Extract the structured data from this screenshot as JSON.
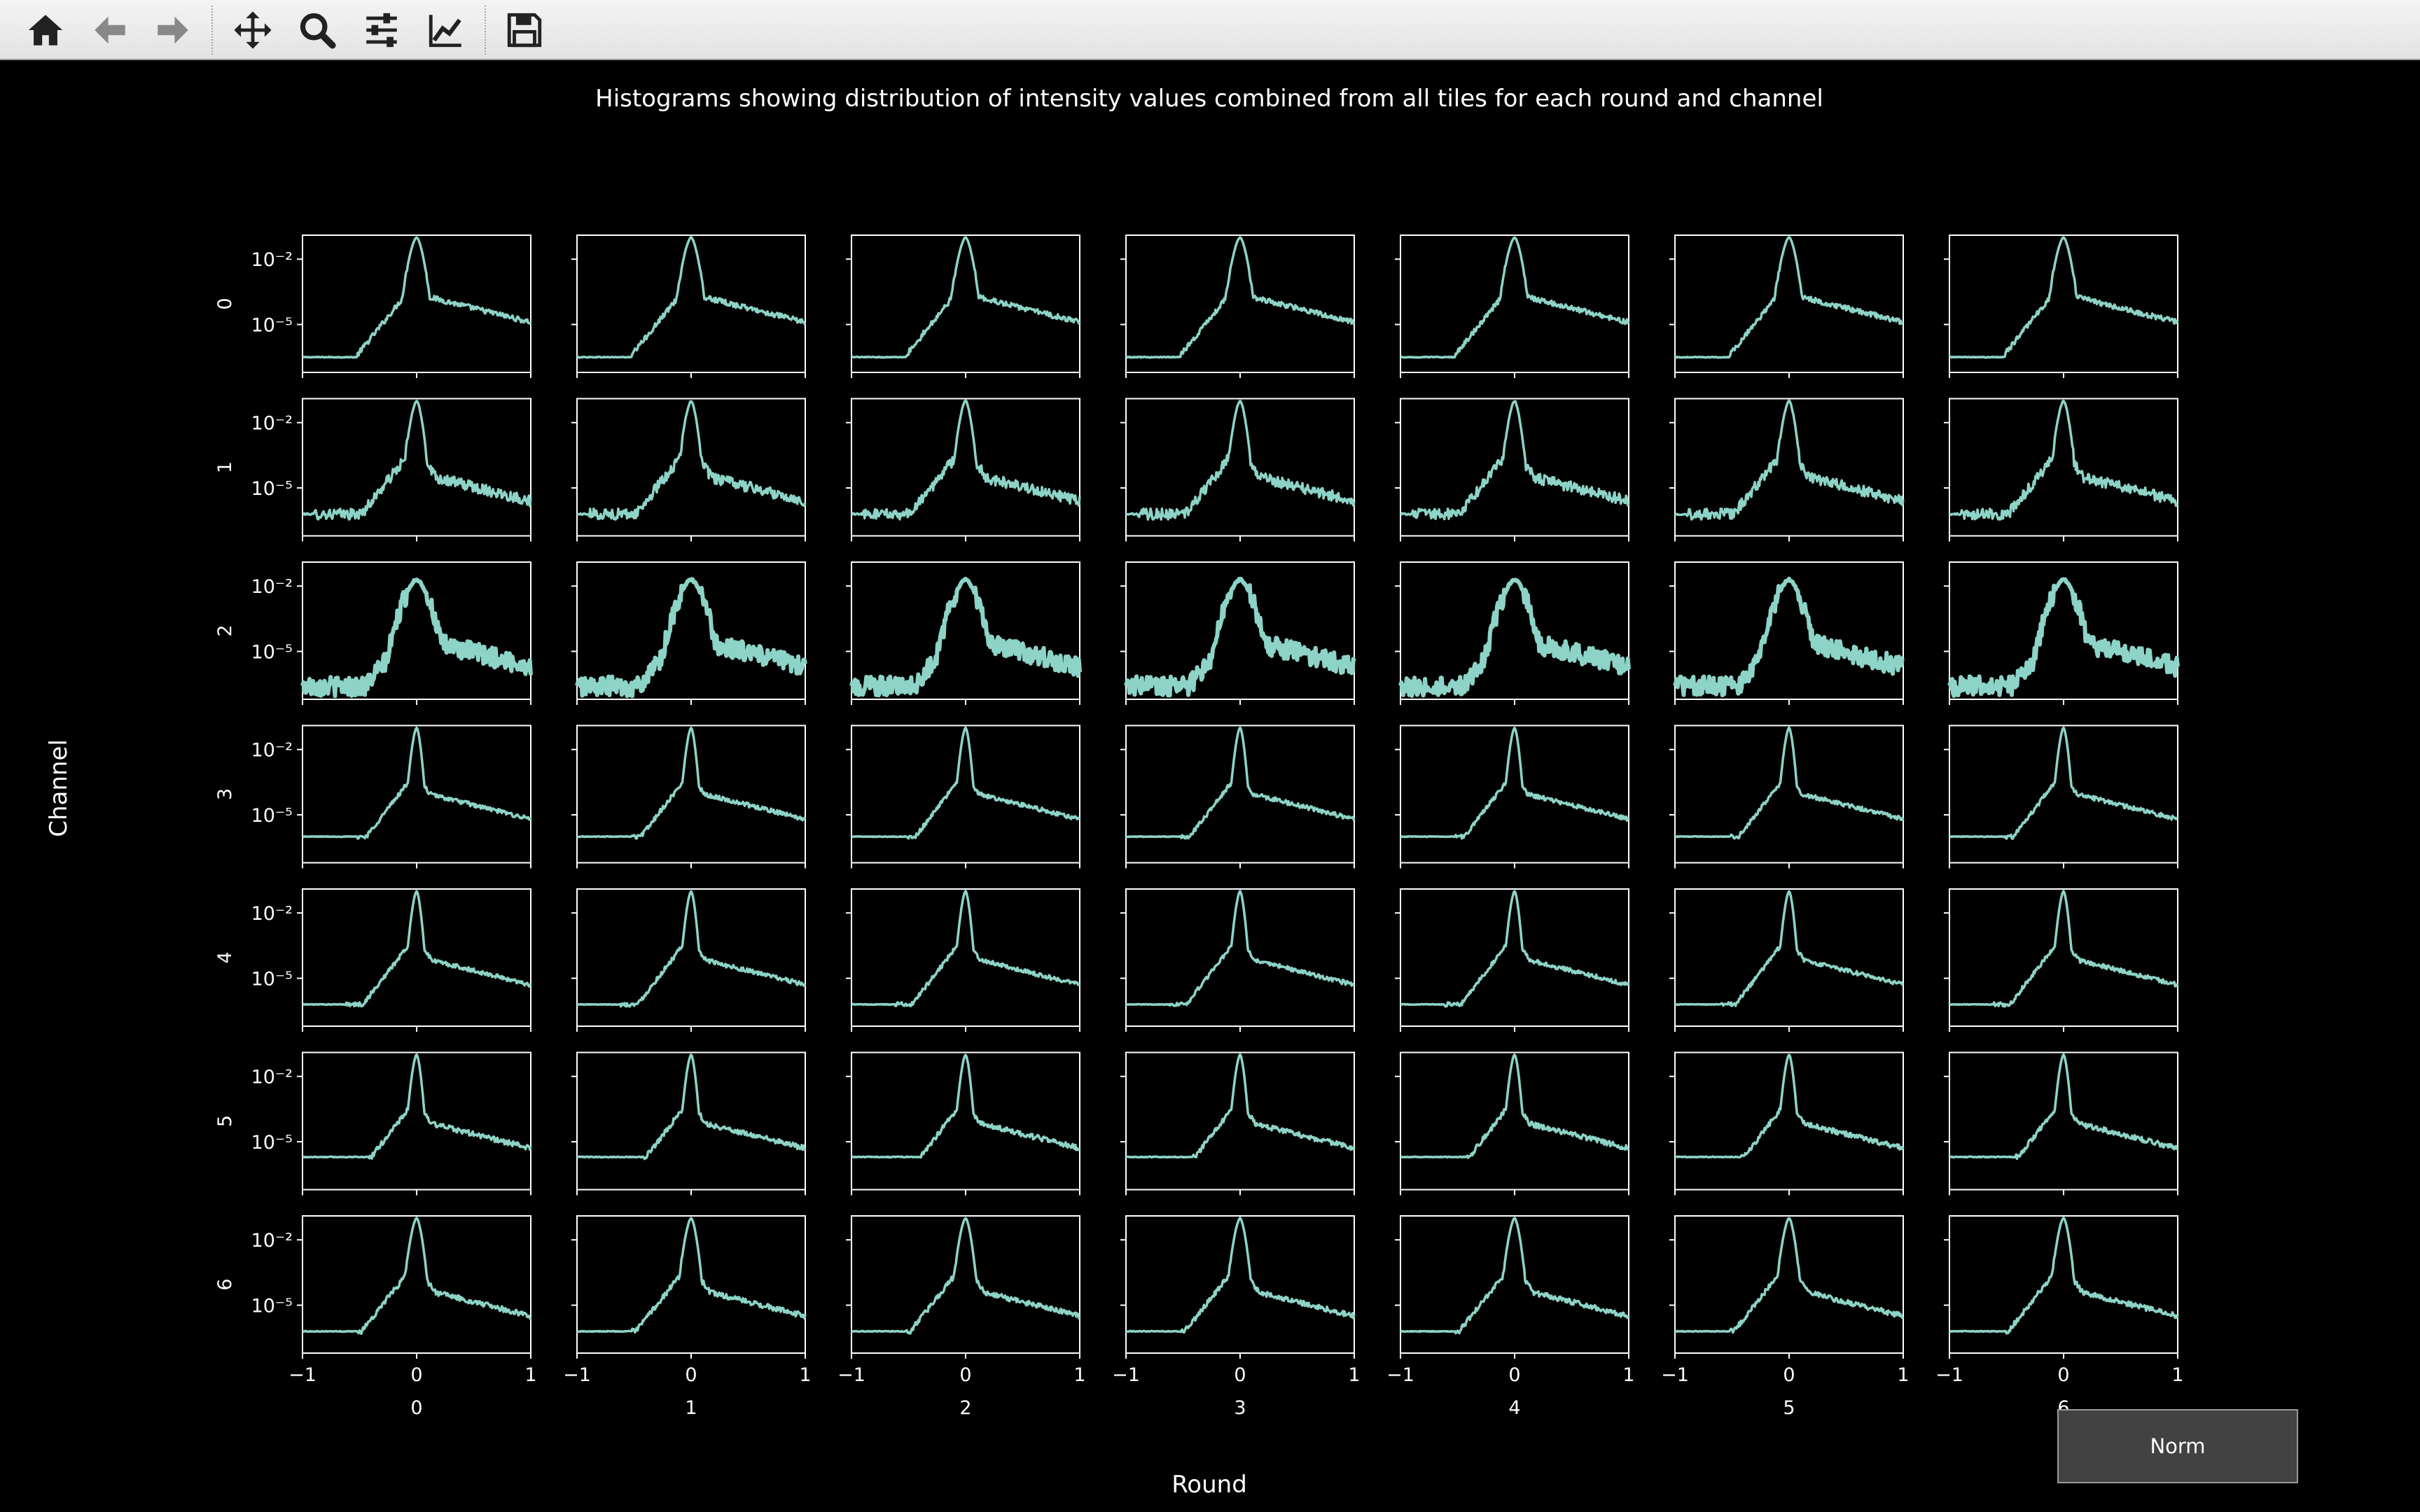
{
  "toolbar": {
    "buttons": [
      {
        "name": "home-icon",
        "tooltip": "Home"
      },
      {
        "name": "back-arrow-icon",
        "tooltip": "Back"
      },
      {
        "name": "forward-arrow-icon",
        "tooltip": "Forward"
      },
      {
        "name": "pan-icon",
        "tooltip": "Pan"
      },
      {
        "name": "zoom-icon",
        "tooltip": "Zoom"
      },
      {
        "name": "subplots-config-icon",
        "tooltip": "Configure subplots"
      },
      {
        "name": "edit-axes-icon",
        "tooltip": "Edit axis"
      },
      {
        "name": "save-icon",
        "tooltip": "Save"
      }
    ]
  },
  "norm_button": {
    "label": "Norm"
  },
  "colors": {
    "background": "#000000",
    "line": "#8dd3c7",
    "axes": "#ffffff",
    "toolbar": "#efefef"
  },
  "chart_data": {
    "type": "line",
    "layout": "small-multiples grid",
    "title": "Histograms showing distribution of intensity values combined from all tiles for each round and channel",
    "xlabel": "Round",
    "ylabel": "Channel",
    "columns": [
      "0",
      "1",
      "2",
      "3",
      "4",
      "5",
      "6"
    ],
    "rows": [
      "0",
      "1",
      "2",
      "3",
      "4",
      "5",
      "6"
    ],
    "xlim": [
      -1,
      1
    ],
    "xticks": [
      "−1",
      "0",
      "1"
    ],
    "yscale": "log",
    "yticks": [
      "10⁻²",
      "10⁻⁵"
    ],
    "ylim_log10": [
      -7.2,
      -0.9
    ],
    "grid": false,
    "series_per_row": [
      {
        "channel": "0",
        "floor_log10": -6.5,
        "floor_end_x": -0.52,
        "peak_log10": -1.0,
        "peak_width": 0.06,
        "tail_right_log10": -4.9,
        "noise": 0.12
      },
      {
        "channel": "1",
        "floor_log10": -6.2,
        "floor_end_x": -0.9,
        "peak_log10": -1.0,
        "peak_width": 0.04,
        "tail_right_log10": -5.6,
        "noise": 0.25
      },
      {
        "channel": "2",
        "floor_log10": -6.6,
        "floor_end_x": -1.0,
        "peak_log10": -1.7,
        "peak_width": 0.14,
        "tail_right_log10": -5.7,
        "noise": 0.45
      },
      {
        "channel": "3",
        "floor_log10": -6.0,
        "floor_end_x": -0.52,
        "peak_log10": -1.0,
        "peak_width": 0.02,
        "tail_right_log10": -5.2,
        "noise": 0.1
      },
      {
        "channel": "4",
        "floor_log10": -6.2,
        "floor_end_x": -0.62,
        "peak_log10": -1.0,
        "peak_width": 0.02,
        "tail_right_log10": -5.3,
        "noise": 0.1
      },
      {
        "channel": "5",
        "floor_log10": -5.7,
        "floor_end_x": -0.42,
        "peak_log10": -1.0,
        "peak_width": 0.02,
        "tail_right_log10": -5.3,
        "noise": 0.12
      },
      {
        "channel": "6",
        "floor_log10": -6.2,
        "floor_end_x": -0.52,
        "peak_log10": -1.0,
        "peak_width": 0.04,
        "tail_right_log10": -5.5,
        "noise": 0.12
      }
    ]
  }
}
